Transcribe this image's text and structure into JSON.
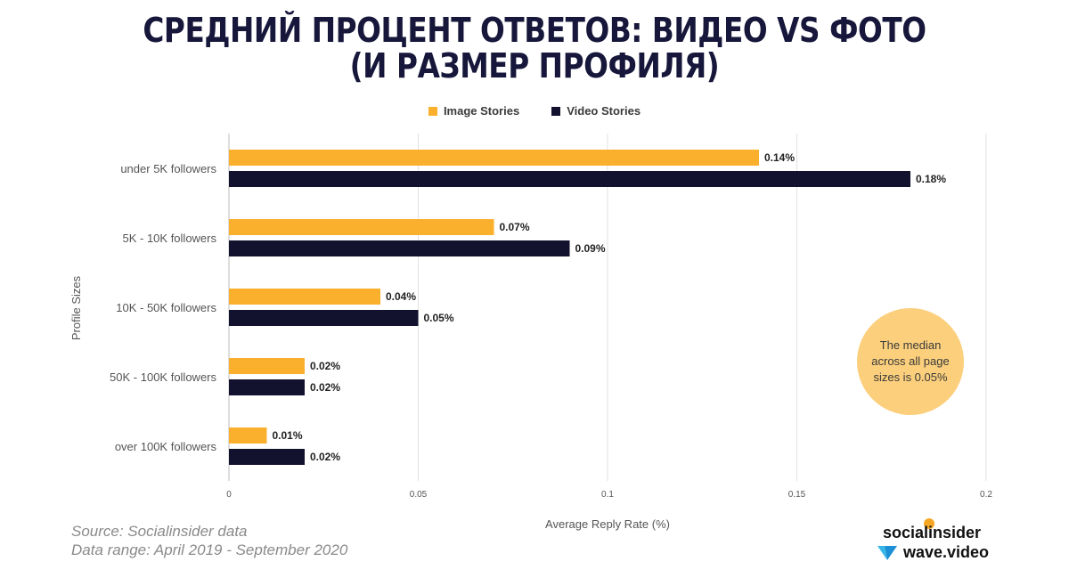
{
  "title_lines": [
    "СРЕДНИЙ ПРОЦЕНТ ОТВЕТОВ: ВИДЕО VS ФОТО",
    "(И РАЗМЕР ПРОФИЛЯ)"
  ],
  "colors": {
    "image": "#fbb02d",
    "video": "#12122e",
    "grid": "#e2e2e2",
    "axis_text": "#555555"
  },
  "chart_data": {
    "type": "bar",
    "orientation": "horizontal",
    "categories": [
      "under 5K followers",
      "5K - 10K followers",
      "10K - 50K followers",
      "50K - 100K followers",
      "over 100K followers"
    ],
    "series": [
      {
        "name": "Image Stories",
        "values": [
          0.14,
          0.07,
          0.04,
          0.02,
          0.01
        ],
        "labels": [
          "0.14%",
          "0.07%",
          "0.04%",
          "0.02%",
          "0.01%"
        ]
      },
      {
        "name": "Video Stories",
        "values": [
          0.18,
          0.09,
          0.05,
          0.02,
          0.02
        ],
        "labels": [
          "0.18%",
          "0.09%",
          "0.05%",
          "0.02%",
          "0.02%"
        ]
      }
    ],
    "xlabel": "Average Reply Rate (%)",
    "ylabel": "Profile Sizes",
    "xlim": [
      0,
      0.2
    ],
    "xticks": [
      0,
      0.05,
      0.1,
      0.15,
      0.2
    ],
    "xtick_labels": [
      "0",
      "0.05",
      "0.1",
      "0.15",
      "0.2"
    ],
    "legend_position": "top-center",
    "grid": true
  },
  "annotation": "The median across all page sizes is 0.05%",
  "source_lines": [
    "Source: Socialinsider data",
    "Data range: April 2019 - September 2020"
  ],
  "brands": {
    "socialinsider": "socialinsider",
    "wave": "wave.video"
  }
}
